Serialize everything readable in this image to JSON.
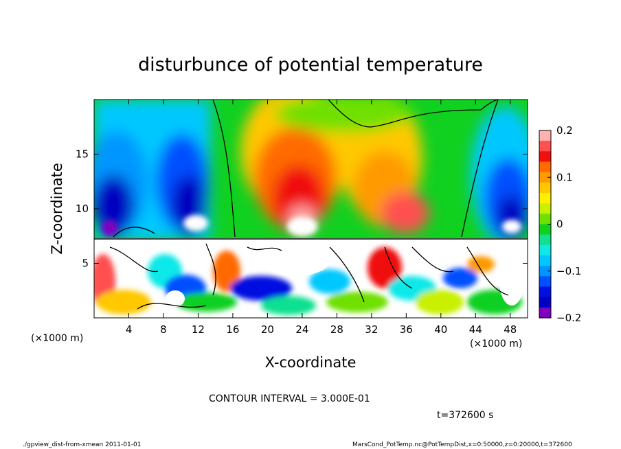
{
  "chart_data": {
    "type": "heatmap",
    "title": "disturbunce of potential temperature",
    "xlabel": "X-coordinate",
    "ylabel": "Z-coordinate",
    "x_unit_label": "(×1000 m)",
    "x_unit_label_right": "(×1000 m)",
    "xlim": [
      0,
      50
    ],
    "ylim": [
      0,
      20
    ],
    "x_ticks": [
      4,
      8,
      12,
      16,
      20,
      24,
      28,
      32,
      36,
      40,
      44,
      48
    ],
    "y_ticks": [
      5,
      10,
      15
    ],
    "colorbar": {
      "range": [
        -0.2,
        0.2
      ],
      "tick_values": [
        0.2,
        0.1,
        0,
        -0.1,
        -0.2
      ],
      "tick_labels": [
        "0.2",
        "0.1",
        "0",
        "−0.1",
        "−0.2"
      ],
      "colors": [
        "#ffb0b0",
        "#ff5050",
        "#f01010",
        "#ff6a00",
        "#ff9a00",
        "#ffc800",
        "#fff000",
        "#c8f000",
        "#70e000",
        "#10d020",
        "#10e090",
        "#10e8e8",
        "#00c8ff",
        "#0096ff",
        "#0050ff",
        "#0010e0",
        "#0000c0",
        "#8000c0"
      ]
    },
    "field_summary": {
      "upper_layer_z_range": [
        7,
        20
      ],
      "upper_layer": [
        {
          "x_center": 2,
          "z_center": 13,
          "value": -0.17
        },
        {
          "x_center": 10,
          "z_center": 11,
          "value": -0.2
        },
        {
          "x_center": 23,
          "z_center": 10,
          "value": 0.2
        },
        {
          "x_center": 33,
          "z_center": 11,
          "value": 0.12
        },
        {
          "x_center": 46,
          "z_center": 10,
          "value": -0.2
        }
      ],
      "lower_layer_z_range": [
        0,
        7
      ],
      "lower_layer_description_values": [
        -0.2,
        0.2
      ]
    },
    "zero_contour_z_top_center": 17.5,
    "contour_interval_text": "CONTOUR INTERVAL = 3.000E-01",
    "time_text": "t=372600 s"
  },
  "footer": {
    "left": "./gpview_dist-from-xmean  2011-01-01",
    "right": "MarsCond_PotTemp.nc@PotTempDist,x=0:50000,z=0:20000,t=372600"
  }
}
